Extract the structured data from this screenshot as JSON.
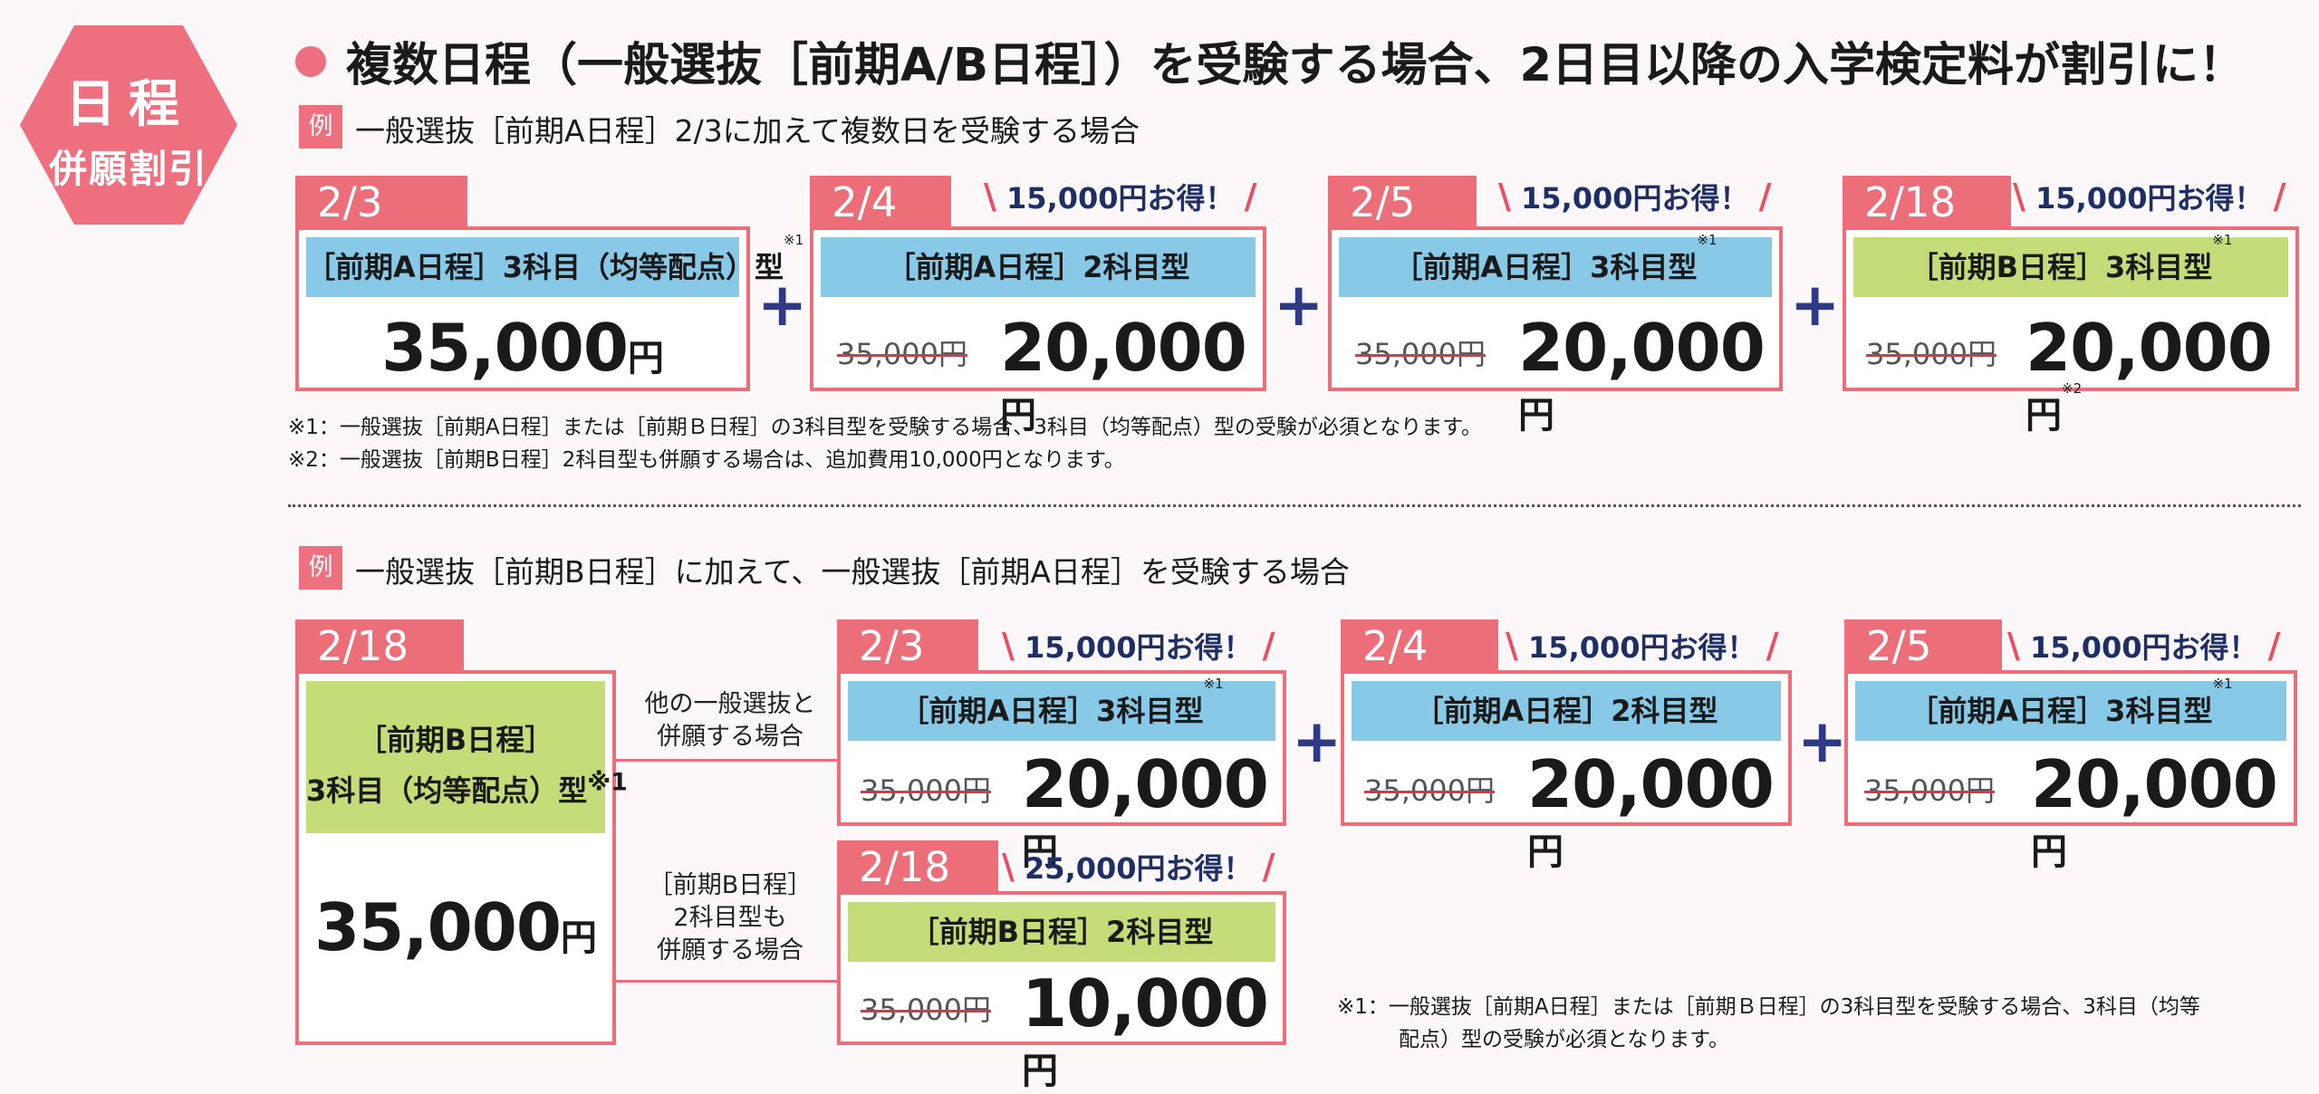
{
  "badge": {
    "line1": "日程",
    "line2": "併願割引"
  },
  "headline": "複数日程（一般選抜［前期A/B日程］）を受験する場合、2日目以降の入学検定料が割引に！",
  "example_label": "例",
  "example1": {
    "title": "一般選抜［前期A日程］2/3に加えて複数日を受験する場合",
    "cards": [
      {
        "date": "2/3",
        "label": "［前期A日程］3科目（均等配点）型",
        "mark": "※1",
        "price": "35,000",
        "yen": "円"
      },
      {
        "date": "2/4",
        "save": "15,000円お得！",
        "label": "［前期A日程］2科目型",
        "old": "35,000円",
        "price": "20,000",
        "yen": "円"
      },
      {
        "date": "2/5",
        "save": "15,000円お得！",
        "label": "［前期A日程］3科目型",
        "mark": "※1",
        "old": "35,000円",
        "price": "20,000",
        "yen": "円"
      },
      {
        "date": "2/18",
        "save": "15,000円お得！",
        "label": "［前期B日程］3科目型",
        "mark": "※1",
        "old": "35,000円",
        "price": "20,000",
        "yen": "円",
        "price_mark": "※2"
      }
    ],
    "footnote1": "※1：一般選抜［前期A日程］または［前期Ｂ日程］の3科目型を受験する場合、3科目（均等配点）型の受験が必須となります。",
    "footnote2": "※2：一般選抜［前期B日程］2科目型も併願する場合は、追加費用10,000円となります。"
  },
  "example2": {
    "title": "一般選抜［前期B日程］に加えて、一般選抜［前期A日程］を受験する場合",
    "main_card": {
      "date": "2/18",
      "label_l1": "［前期B日程］",
      "label_l2": "3科目（均等配点）型",
      "mark": "※1",
      "price": "35,000",
      "yen": "円"
    },
    "side1": {
      "l1": "他の一般選抜と",
      "l2": "併願する場合"
    },
    "side2": {
      "l1": "［前期B日程］",
      "l2": "2科目型も",
      "l3": "併願する場合"
    },
    "cards": [
      {
        "date": "2/3",
        "save": "15,000円お得！",
        "label": "［前期A日程］3科目型",
        "mark": "※1",
        "old": "35,000円",
        "price": "20,000",
        "yen": "円"
      },
      {
        "date": "2/4",
        "save": "15,000円お得！",
        "label": "［前期A日程］2科目型",
        "old": "35,000円",
        "price": "20,000",
        "yen": "円"
      },
      {
        "date": "2/5",
        "save": "15,000円お得！",
        "label": "［前期A日程］3科目型",
        "mark": "※1",
        "old": "35,000円",
        "price": "20,000",
        "yen": "円"
      },
      {
        "date": "2/18",
        "save": "25,000円お得！",
        "label": "［前期B日程］2科目型",
        "old": "35,000円",
        "price": "10,000",
        "yen": "円"
      }
    ],
    "footnote_l1": "※1：一般選抜［前期A日程］または［前期Ｂ日程］の3科目型を受験する場合、3科目（均等",
    "footnote_l2": "配点）型の受験が必須となります。"
  },
  "plus": "+",
  "save_slash_left": "\\",
  "save_slash_right": "/",
  "colors": {
    "accent": "#ec6e78",
    "blue_bar": "#89c9e8",
    "green_bar": "#c5dd78",
    "navy": "#2f3a86"
  }
}
